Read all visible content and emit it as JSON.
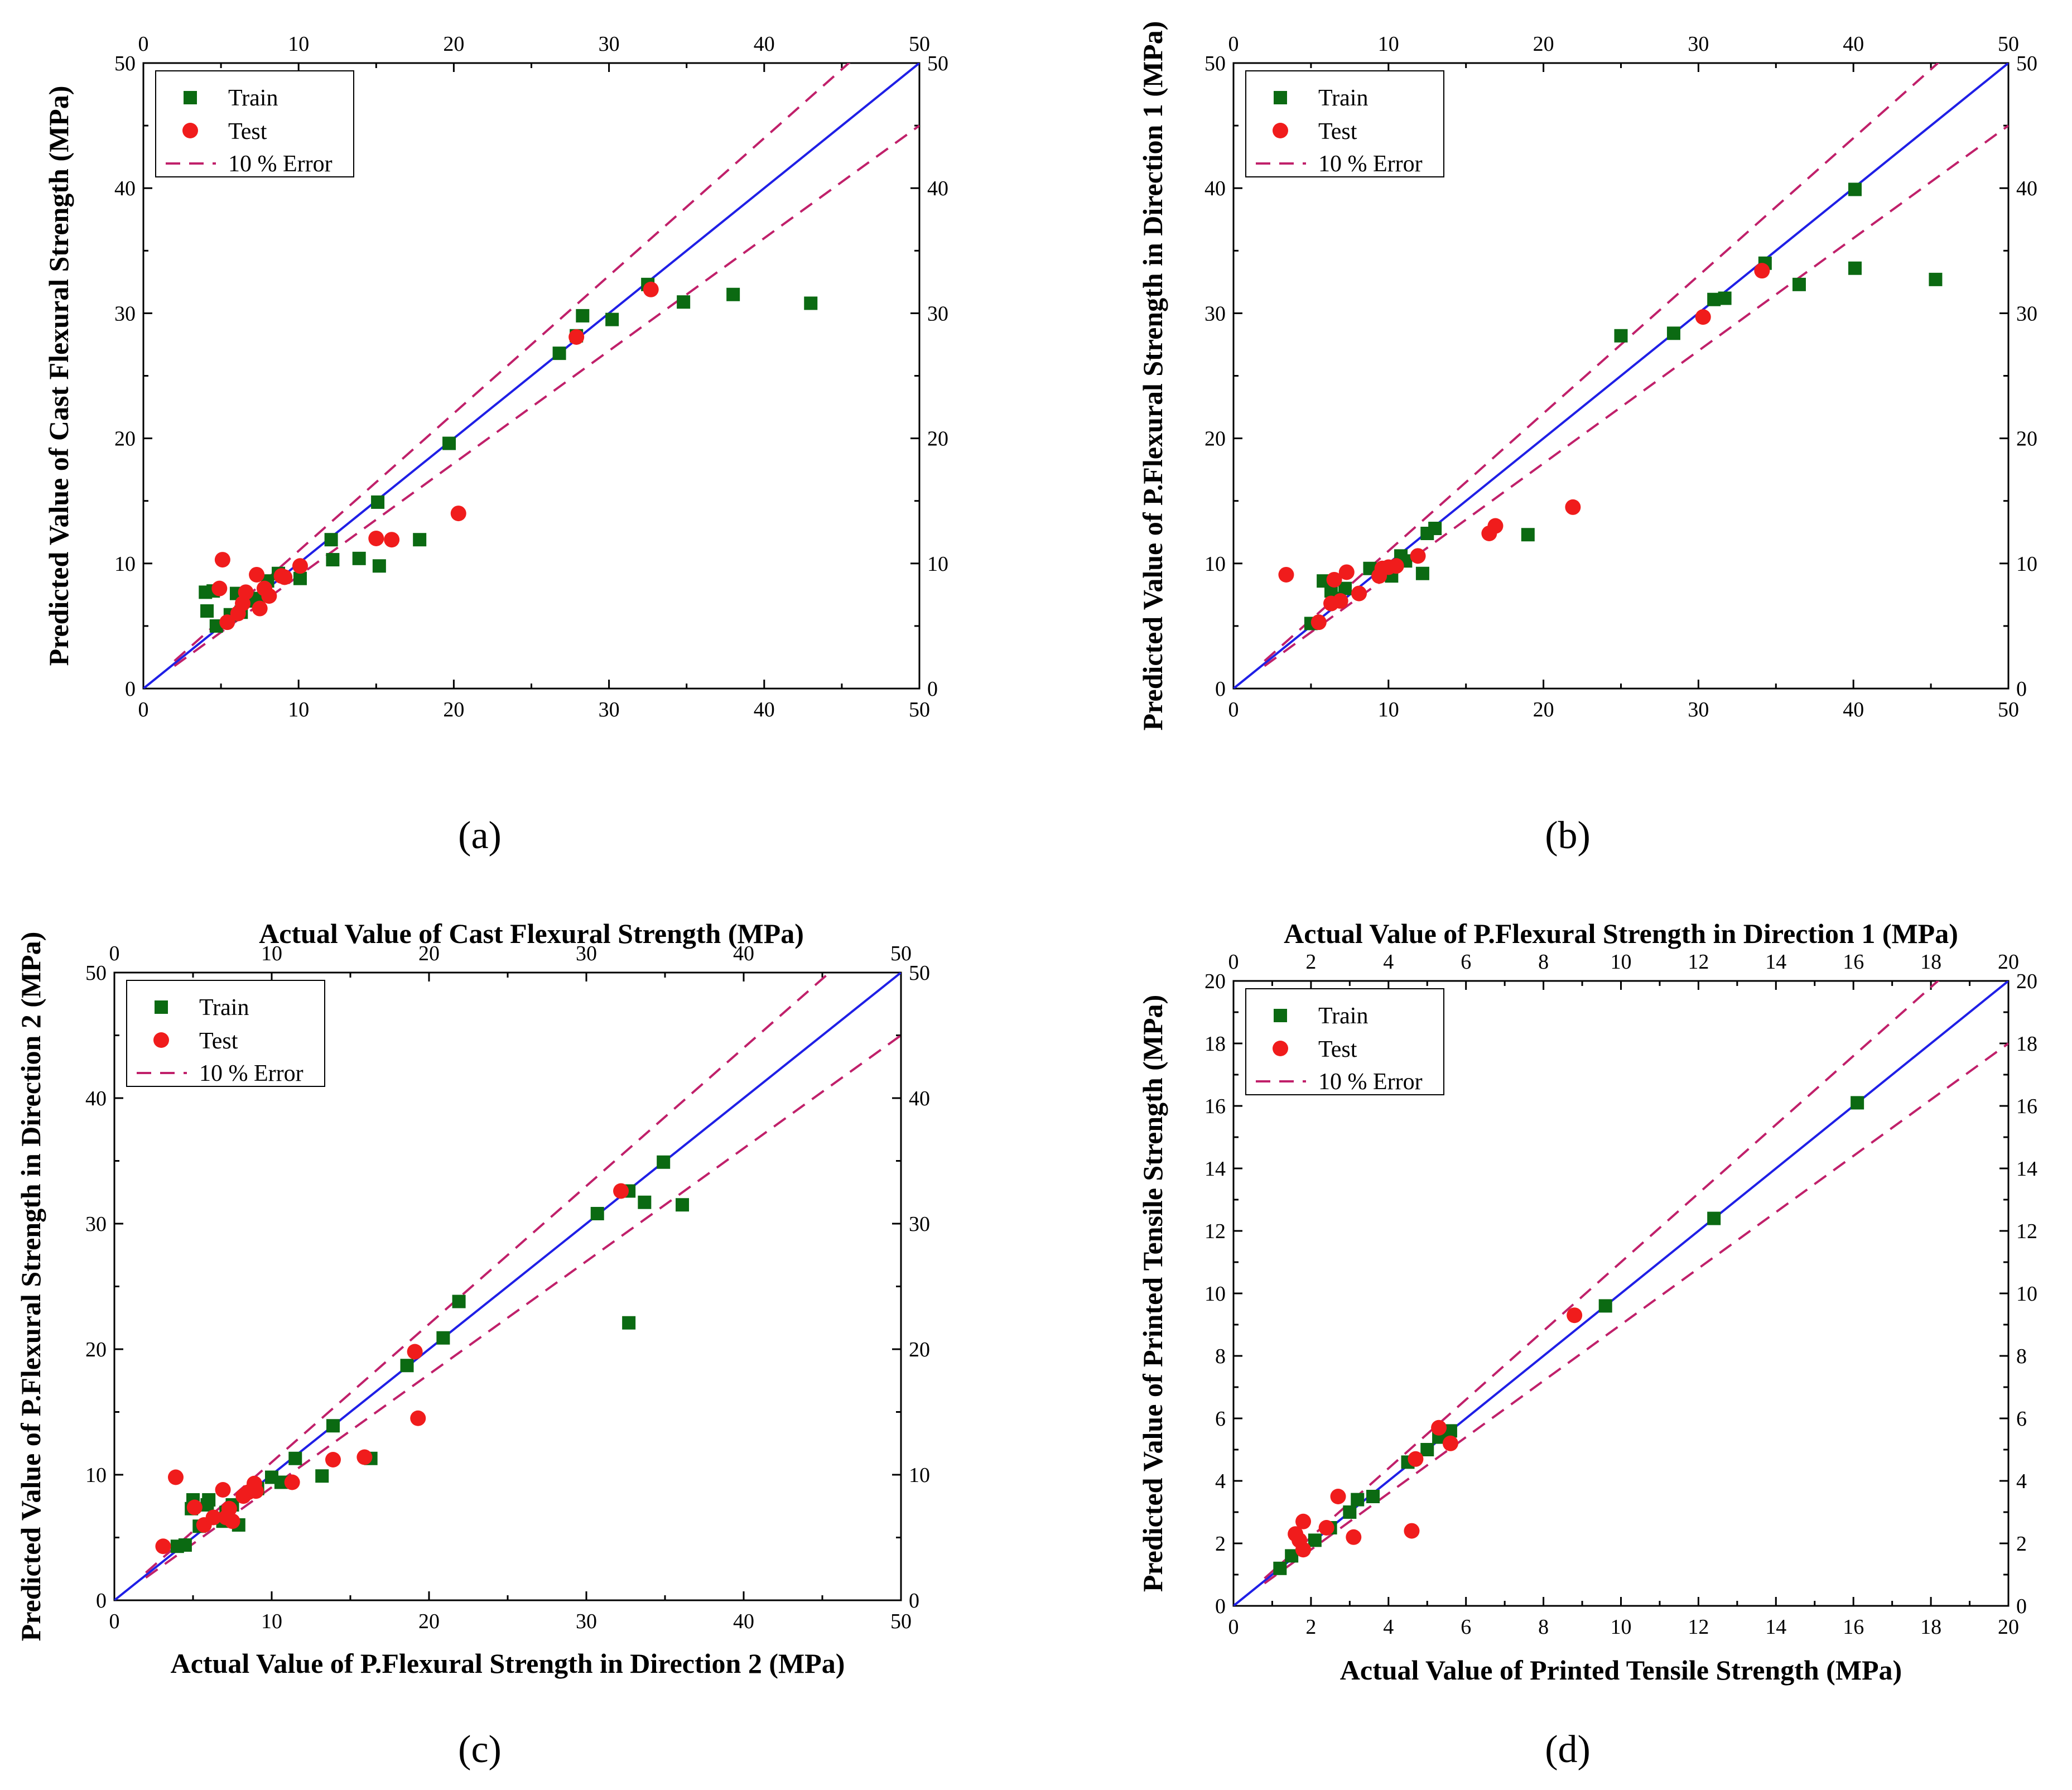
{
  "colors": {
    "train": "#0b6a12",
    "test": "#f01c1c",
    "identity": "#1f1fe6",
    "error": "#c0206a"
  },
  "chart_data": [
    {
      "id": "a",
      "panel_label": "(a)",
      "type": "scatter",
      "xlabel": "Actual Value of Cast Flexural Strength (MPa)",
      "ylabel": "Predicted Value of Cast Flexural Strength (MPa)",
      "xlim": [
        0,
        50
      ],
      "ylim": [
        0,
        50
      ],
      "ticks": [
        0,
        10,
        20,
        30,
        40,
        50
      ],
      "legend": {
        "position": "top-left",
        "train": "Train",
        "test": "Test",
        "error": "10 % Error"
      },
      "error_band": 0.1,
      "series": [
        {
          "name": "Train",
          "marker": "square",
          "points": [
            [
              4,
              7.7
            ],
            [
              4.1,
              6.2
            ],
            [
              4.5,
              7.8
            ],
            [
              4.7,
              5
            ],
            [
              5.6,
              5.9
            ],
            [
              6,
              7.6
            ],
            [
              6.3,
              6.1
            ],
            [
              6.8,
              7
            ],
            [
              7.4,
              7.2
            ],
            [
              8,
              8.6
            ],
            [
              8.7,
              9.2
            ],
            [
              10.1,
              8.8
            ],
            [
              12.1,
              11.9
            ],
            [
              12.2,
              10.3
            ],
            [
              13.9,
              10.4
            ],
            [
              15.1,
              14.9
            ],
            [
              15.2,
              9.8
            ],
            [
              17.8,
              11.9
            ],
            [
              19.7,
              19.6
            ],
            [
              26.8,
              26.8
            ],
            [
              27.9,
              28.2
            ],
            [
              28.3,
              29.8
            ],
            [
              30.2,
              29.5
            ],
            [
              32.5,
              32.3
            ],
            [
              34.8,
              30.9
            ],
            [
              38,
              31.5
            ],
            [
              43,
              30.8
            ]
          ]
        },
        {
          "name": "Test",
          "marker": "circle",
          "points": [
            [
              4.9,
              8
            ],
            [
              5.1,
              10.3
            ],
            [
              5.4,
              5.3
            ],
            [
              6.1,
              6
            ],
            [
              6.4,
              6.8
            ],
            [
              6.6,
              7.7
            ],
            [
              7.3,
              9.1
            ],
            [
              7.5,
              6.4
            ],
            [
              7.8,
              8
            ],
            [
              8.1,
              7.4
            ],
            [
              8.9,
              9
            ],
            [
              9.1,
              8.9
            ],
            [
              10.1,
              9.8
            ],
            [
              15,
              12
            ],
            [
              16,
              11.9
            ],
            [
              20.3,
              14
            ],
            [
              27.9,
              28.1
            ],
            [
              32.7,
              31.9
            ]
          ]
        }
      ]
    },
    {
      "id": "b",
      "panel_label": "(b)",
      "type": "scatter",
      "xlabel": "Actual Value of P.Flexural Strength in Direction 1 (MPa)",
      "ylabel": "Predicted Value of P.Flexural Strength in Direction 1 (MPa)",
      "xlim": [
        0,
        50
      ],
      "ylim": [
        0,
        50
      ],
      "ticks": [
        0,
        10,
        20,
        30,
        40,
        50
      ],
      "legend": {
        "position": "top-left",
        "train": "Train",
        "test": "Test",
        "error": "10 % Error"
      },
      "error_band": 0.1,
      "series": [
        {
          "name": "Train",
          "marker": "square",
          "points": [
            [
              5,
              5.2
            ],
            [
              5.8,
              8.6
            ],
            [
              6.3,
              7.8
            ],
            [
              6.8,
              7.2
            ],
            [
              7.2,
              8
            ],
            [
              8.8,
              9.6
            ],
            [
              9.7,
              9.4
            ],
            [
              10.2,
              9
            ],
            [
              10.8,
              10.6
            ],
            [
              11.1,
              10.2
            ],
            [
              12.2,
              9.2
            ],
            [
              12.5,
              12.4
            ],
            [
              13,
              12.8
            ],
            [
              19,
              12.3
            ],
            [
              25,
              28.2
            ],
            [
              28.4,
              28.4
            ],
            [
              31,
              31.1
            ],
            [
              31.7,
              31.2
            ],
            [
              34.3,
              34
            ],
            [
              36.5,
              32.3
            ],
            [
              40.1,
              39.9
            ],
            [
              40.1,
              33.6
            ],
            [
              45.3,
              32.7
            ]
          ]
        },
        {
          "name": "Test",
          "marker": "circle",
          "points": [
            [
              3.4,
              9.1
            ],
            [
              5.5,
              5.3
            ],
            [
              6.3,
              6.8
            ],
            [
              6.5,
              8.7
            ],
            [
              6.9,
              7
            ],
            [
              7.3,
              9.3
            ],
            [
              8.1,
              7.6
            ],
            [
              9.4,
              9
            ],
            [
              9.6,
              9.6
            ],
            [
              10,
              9.7
            ],
            [
              10.5,
              9.8
            ],
            [
              11.9,
              10.6
            ],
            [
              16.5,
              12.4
            ],
            [
              16.9,
              13
            ],
            [
              21.9,
              14.5
            ],
            [
              30.3,
              29.7
            ],
            [
              34.1,
              33.4
            ]
          ]
        }
      ]
    },
    {
      "id": "c",
      "panel_label": "(c)",
      "type": "scatter",
      "xlabel": "Actual Value of P.Flexural Strength in Direction 2 (MPa)",
      "ylabel": "Predicted Value of P.Flexural Strength in Direction 2 (MPa)",
      "xlim": [
        0,
        50
      ],
      "ylim": [
        0,
        50
      ],
      "ticks": [
        0,
        10,
        20,
        30,
        40,
        50
      ],
      "legend": {
        "position": "top-left",
        "train": "Train",
        "test": "Test",
        "error": "10 % Error"
      },
      "error_band": 0.1,
      "series": [
        {
          "name": "Train",
          "marker": "square",
          "points": [
            [
              4,
              4.3
            ],
            [
              4.5,
              4.4
            ],
            [
              4.9,
              7.3
            ],
            [
              5,
              8
            ],
            [
              5.4,
              5.9
            ],
            [
              5.9,
              7.6
            ],
            [
              6,
              8
            ],
            [
              6.9,
              6.3
            ],
            [
              7.1,
              7
            ],
            [
              7.5,
              7.6
            ],
            [
              7.9,
              6
            ],
            [
              9.1,
              8.9
            ],
            [
              10,
              9.8
            ],
            [
              10.6,
              9.4
            ],
            [
              11.5,
              11.3
            ],
            [
              13.2,
              9.9
            ],
            [
              13.9,
              13.9
            ],
            [
              16.3,
              11.3
            ],
            [
              18.6,
              18.7
            ],
            [
              20.9,
              20.9
            ],
            [
              21.9,
              23.8
            ],
            [
              30.7,
              30.8
            ],
            [
              32.7,
              32.6
            ],
            [
              32.7,
              22.1
            ],
            [
              33.7,
              31.7
            ],
            [
              34.9,
              34.9
            ],
            [
              36.1,
              31.5
            ]
          ]
        },
        {
          "name": "Test",
          "marker": "circle",
          "points": [
            [
              3.1,
              4.3
            ],
            [
              3.9,
              9.8
            ],
            [
              5.1,
              7.4
            ],
            [
              5.7,
              6
            ],
            [
              6.3,
              6.6
            ],
            [
              6.9,
              8.8
            ],
            [
              7.1,
              6.6
            ],
            [
              7.3,
              7.3
            ],
            [
              7.5,
              6.3
            ],
            [
              8.2,
              8.3
            ],
            [
              8.5,
              8.6
            ],
            [
              8.9,
              9.3
            ],
            [
              9,
              8.7
            ],
            [
              11.3,
              9.4
            ],
            [
              13.9,
              11.2
            ],
            [
              15.9,
              11.4
            ],
            [
              19.1,
              19.8
            ],
            [
              19.3,
              14.5
            ],
            [
              32.2,
              32.6
            ]
          ]
        }
      ]
    },
    {
      "id": "d",
      "panel_label": "(d)",
      "type": "scatter",
      "xlabel": "Actual Value of Printed Tensile Strength (MPa)",
      "ylabel": "Predicted Value of Printed Tensile Strength (MPa)",
      "xlim": [
        0,
        20
      ],
      "ylim": [
        0,
        20
      ],
      "ticks": [
        0,
        2,
        4,
        6,
        8,
        10,
        12,
        14,
        16,
        18,
        20
      ],
      "legend": {
        "position": "top-left",
        "train": "Train",
        "test": "Test",
        "error": "10 % Error"
      },
      "error_band": 0.1,
      "series": [
        {
          "name": "Train",
          "marker": "square",
          "points": [
            [
              1.2,
              1.2
            ],
            [
              1.5,
              1.6
            ],
            [
              2.1,
              2.1
            ],
            [
              2.5,
              2.5
            ],
            [
              3,
              3
            ],
            [
              3.2,
              3.4
            ],
            [
              3.6,
              3.5
            ],
            [
              4.5,
              4.6
            ],
            [
              5,
              5
            ],
            [
              5.3,
              5.4
            ],
            [
              5.6,
              5.6
            ],
            [
              9.6,
              9.6
            ],
            [
              12.4,
              12.4
            ],
            [
              16.1,
              16.1
            ]
          ]
        },
        {
          "name": "Test",
          "marker": "circle",
          "points": [
            [
              1.6,
              2.3
            ],
            [
              1.7,
              2.1
            ],
            [
              1.8,
              1.8
            ],
            [
              1.8,
              2.7
            ],
            [
              2.4,
              2.5
            ],
            [
              2.7,
              3.5
            ],
            [
              3.1,
              2.2
            ],
            [
              4.6,
              2.4
            ],
            [
              4.7,
              4.7
            ],
            [
              5.3,
              5.7
            ],
            [
              5.6,
              5.2
            ],
            [
              8.8,
              9.3
            ]
          ]
        }
      ]
    }
  ]
}
